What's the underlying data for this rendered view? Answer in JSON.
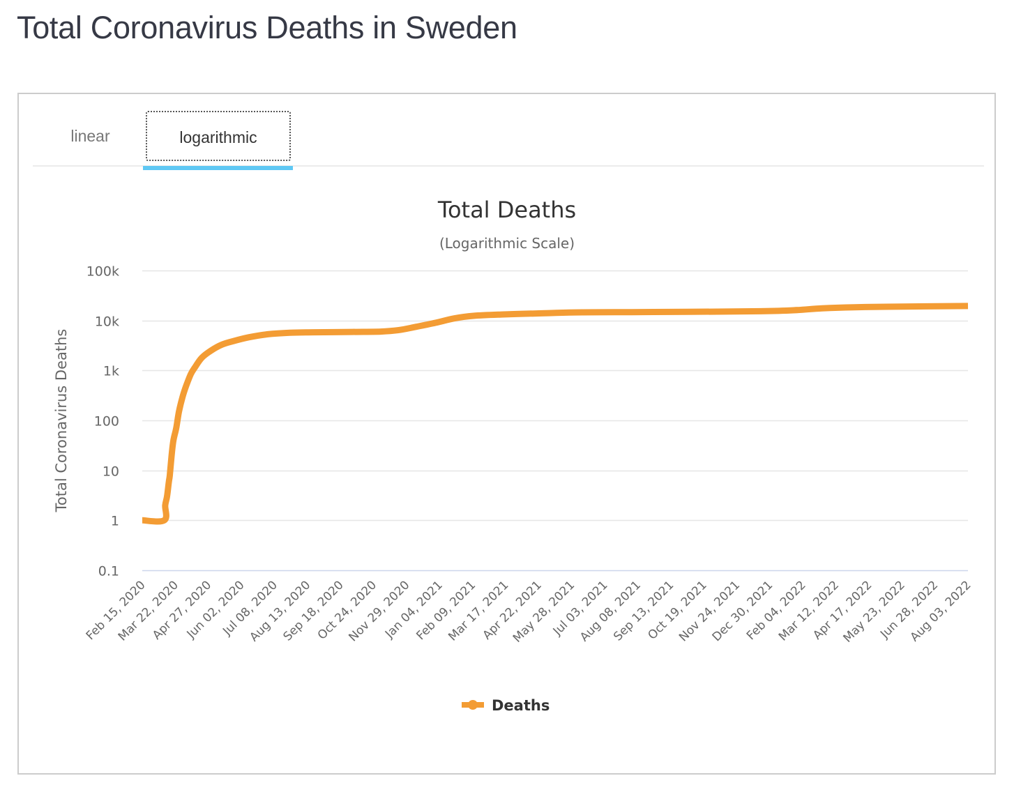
{
  "page": {
    "title": "Total Coronavirus Deaths in Sweden"
  },
  "tabs": [
    {
      "label": "linear",
      "active": false
    },
    {
      "label": "logarithmic",
      "active": true
    }
  ],
  "colors": {
    "series": "#f39c34",
    "tab_underline": "#5fc8f4",
    "grid": "#e6e6e6",
    "axis_line": "#ccd6eb"
  },
  "chart_data": {
    "type": "line",
    "title": "Total Deaths",
    "subtitle": "(Logarithmic Scale)",
    "xlabel": "",
    "ylabel": "Total Coronavirus Deaths",
    "y_scale": "log",
    "ylim": [
      0.1,
      100000
    ],
    "y_ticks": [
      {
        "value": 100000,
        "label": "100k"
      },
      {
        "value": 10000,
        "label": "10k"
      },
      {
        "value": 1000,
        "label": "1k"
      },
      {
        "value": 100,
        "label": "100"
      },
      {
        "value": 10,
        "label": "10"
      },
      {
        "value": 1,
        "label": "1"
      },
      {
        "value": 0.1,
        "label": "0.1"
      }
    ],
    "x_start": "2020-02-15",
    "x_end": "2022-08-03",
    "x_tick_labels": [
      "Feb 15, 2020",
      "Mar 22, 2020",
      "Apr 27, 2020",
      "Jun 02, 2020",
      "Jul 08, 2020",
      "Aug 13, 2020",
      "Sep 18, 2020",
      "Oct 24, 2020",
      "Nov 29, 2020",
      "Jan 04, 2021",
      "Feb 09, 2021",
      "Mar 17, 2021",
      "Apr 22, 2021",
      "May 28, 2021",
      "Jul 03, 2021",
      "Aug 08, 2021",
      "Sep 13, 2021",
      "Oct 19, 2021",
      "Nov 24, 2021",
      "Dec 30, 2021",
      "Feb 04, 2022",
      "Mar 12, 2022",
      "Apr 17, 2022",
      "May 23, 2022",
      "Jun 28, 2022",
      "Aug 03, 2022"
    ],
    "grid": true,
    "legend": {
      "position": "bottom-center",
      "entries": [
        "Deaths"
      ]
    },
    "series": [
      {
        "name": "Deaths",
        "points": [
          {
            "date": "2020-02-15",
            "value": 1
          },
          {
            "date": "2020-03-10",
            "value": 1
          },
          {
            "date": "2020-03-11",
            "value": 2
          },
          {
            "date": "2020-03-13",
            "value": 3
          },
          {
            "date": "2020-03-15",
            "value": 6
          },
          {
            "date": "2020-03-16",
            "value": 8
          },
          {
            "date": "2020-03-18",
            "value": 20
          },
          {
            "date": "2020-03-20",
            "value": 40
          },
          {
            "date": "2020-03-23",
            "value": 70
          },
          {
            "date": "2020-03-26",
            "value": 150
          },
          {
            "date": "2020-03-30",
            "value": 300
          },
          {
            "date": "2020-04-03",
            "value": 500
          },
          {
            "date": "2020-04-08",
            "value": 850
          },
          {
            "date": "2020-04-13",
            "value": 1200
          },
          {
            "date": "2020-04-20",
            "value": 1800
          },
          {
            "date": "2020-04-30",
            "value": 2500
          },
          {
            "date": "2020-05-12",
            "value": 3300
          },
          {
            "date": "2020-05-25",
            "value": 3900
          },
          {
            "date": "2020-06-10",
            "value": 4600
          },
          {
            "date": "2020-07-01",
            "value": 5300
          },
          {
            "date": "2020-07-25",
            "value": 5700
          },
          {
            "date": "2020-08-20",
            "value": 5800
          },
          {
            "date": "2020-10-01",
            "value": 5900
          },
          {
            "date": "2020-11-01",
            "value": 6000
          },
          {
            "date": "2020-11-20",
            "value": 6400
          },
          {
            "date": "2020-12-10",
            "value": 7500
          },
          {
            "date": "2020-12-31",
            "value": 9000
          },
          {
            "date": "2021-01-20",
            "value": 11000
          },
          {
            "date": "2021-02-10",
            "value": 12400
          },
          {
            "date": "2021-03-15",
            "value": 13200
          },
          {
            "date": "2021-04-20",
            "value": 13800
          },
          {
            "date": "2021-06-01",
            "value": 14500
          },
          {
            "date": "2021-08-01",
            "value": 14700
          },
          {
            "date": "2021-10-01",
            "value": 14900
          },
          {
            "date": "2021-12-20",
            "value": 15300
          },
          {
            "date": "2022-01-25",
            "value": 16000
          },
          {
            "date": "2022-02-25",
            "value": 17500
          },
          {
            "date": "2022-04-01",
            "value": 18400
          },
          {
            "date": "2022-05-15",
            "value": 18900
          },
          {
            "date": "2022-08-03",
            "value": 19500
          }
        ]
      }
    ]
  }
}
